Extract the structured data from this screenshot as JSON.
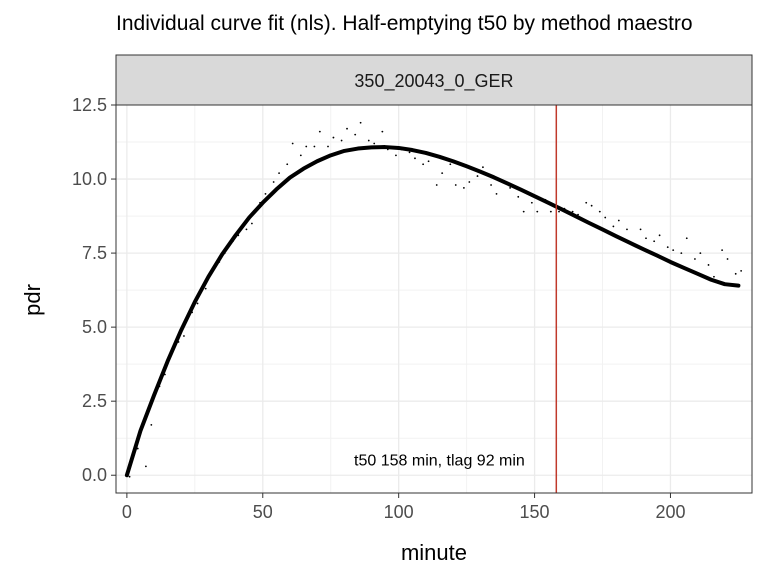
{
  "title": "Individual curve fit (nls). Half-emptying t50 by method maestro",
  "chart_data": {
    "type": "scatter",
    "title": "Individual curve fit (nls). Half-emptying t50 by method maestro",
    "facet_label": "350_20043_0_GER",
    "xlabel": "minute",
    "ylabel": "pdr",
    "xlim": [
      -4,
      230
    ],
    "ylim": [
      -0.6,
      12.5
    ],
    "x_ticks": [
      0,
      50,
      100,
      150,
      200
    ],
    "x_tick_labels": [
      "0",
      "50",
      "100",
      "150",
      "200"
    ],
    "y_ticks": [
      0,
      2.5,
      5,
      7.5,
      10,
      12.5
    ],
    "y_tick_labels": [
      "0.0",
      "2.5",
      "5.0",
      "7.5",
      "10.0",
      "12.5"
    ],
    "grid": true,
    "vline": {
      "x": 158,
      "color": "#c0392b"
    },
    "annotation": {
      "text": "t50 158 min,  tlag 92 min",
      "x": 115,
      "y": 0.5
    },
    "points": {
      "x": [
        1,
        4,
        7,
        9,
        12,
        14,
        16,
        19,
        21,
        24,
        26,
        29,
        31,
        34,
        36,
        39,
        41,
        44,
        46,
        49,
        51,
        54,
        56,
        59,
        61,
        64,
        66,
        69,
        71,
        74,
        76,
        79,
        81,
        84,
        86,
        89,
        91,
        94,
        96,
        99,
        101,
        104,
        106,
        109,
        111,
        114,
        116,
        119,
        121,
        124,
        126,
        129,
        131,
        134,
        136,
        139,
        141,
        144,
        146,
        149,
        151,
        154,
        156,
        159,
        161,
        164,
        166,
        169,
        171,
        174,
        176,
        179,
        181,
        184,
        186,
        189,
        191,
        194,
        196,
        199,
        201,
        204,
        206,
        209,
        211,
        214,
        216,
        219,
        221,
        224,
        226
      ],
      "y": [
        -0.05,
        0.9,
        0.3,
        1.7,
        3.0,
        3.4,
        4.0,
        4.5,
        4.7,
        5.5,
        5.8,
        6.3,
        6.8,
        7.2,
        7.5,
        7.9,
        8.1,
        8.3,
        8.5,
        9.2,
        9.5,
        9.9,
        10.2,
        10.5,
        11.2,
        10.8,
        11.1,
        11.1,
        11.6,
        11.1,
        11.4,
        11.3,
        11.7,
        11.5,
        11.9,
        11.3,
        11.2,
        11.6,
        11.0,
        10.8,
        11.0,
        10.9,
        10.7,
        10.5,
        10.6,
        9.8,
        10.2,
        10.5,
        9.8,
        9.7,
        9.9,
        10.1,
        10.4,
        9.8,
        9.5,
        9.9,
        9.7,
        9.4,
        8.9,
        9.2,
        8.9,
        9.3,
        8.9,
        8.9,
        9.0,
        8.9,
        8.8,
        9.2,
        9.1,
        8.9,
        8.7,
        8.4,
        8.6,
        8.3,
        7.8,
        8.3,
        8.0,
        7.9,
        8.1,
        7.7,
        7.6,
        7.5,
        8.0,
        7.3,
        7.5,
        7.1,
        6.7,
        7.6,
        7.3,
        6.8,
        6.9
      ]
    },
    "fit_line": {
      "x": [
        0,
        5,
        10,
        15,
        20,
        25,
        30,
        35,
        40,
        45,
        50,
        55,
        60,
        65,
        70,
        75,
        80,
        85,
        90,
        95,
        100,
        105,
        110,
        115,
        120,
        125,
        130,
        135,
        140,
        145,
        150,
        155,
        160,
        165,
        170,
        175,
        180,
        185,
        190,
        195,
        200,
        205,
        210,
        215,
        220,
        225
      ],
      "y": [
        0.0,
        1.5,
        2.7,
        3.85,
        4.9,
        5.85,
        6.7,
        7.45,
        8.1,
        8.7,
        9.2,
        9.65,
        10.05,
        10.35,
        10.6,
        10.8,
        10.95,
        11.03,
        11.07,
        11.08,
        11.05,
        10.98,
        10.88,
        10.75,
        10.6,
        10.43,
        10.25,
        10.06,
        9.85,
        9.64,
        9.42,
        9.2,
        8.98,
        8.75,
        8.52,
        8.3,
        8.07,
        7.85,
        7.63,
        7.42,
        7.2,
        7.0,
        6.8,
        6.6,
        6.45,
        6.4
      ]
    }
  }
}
